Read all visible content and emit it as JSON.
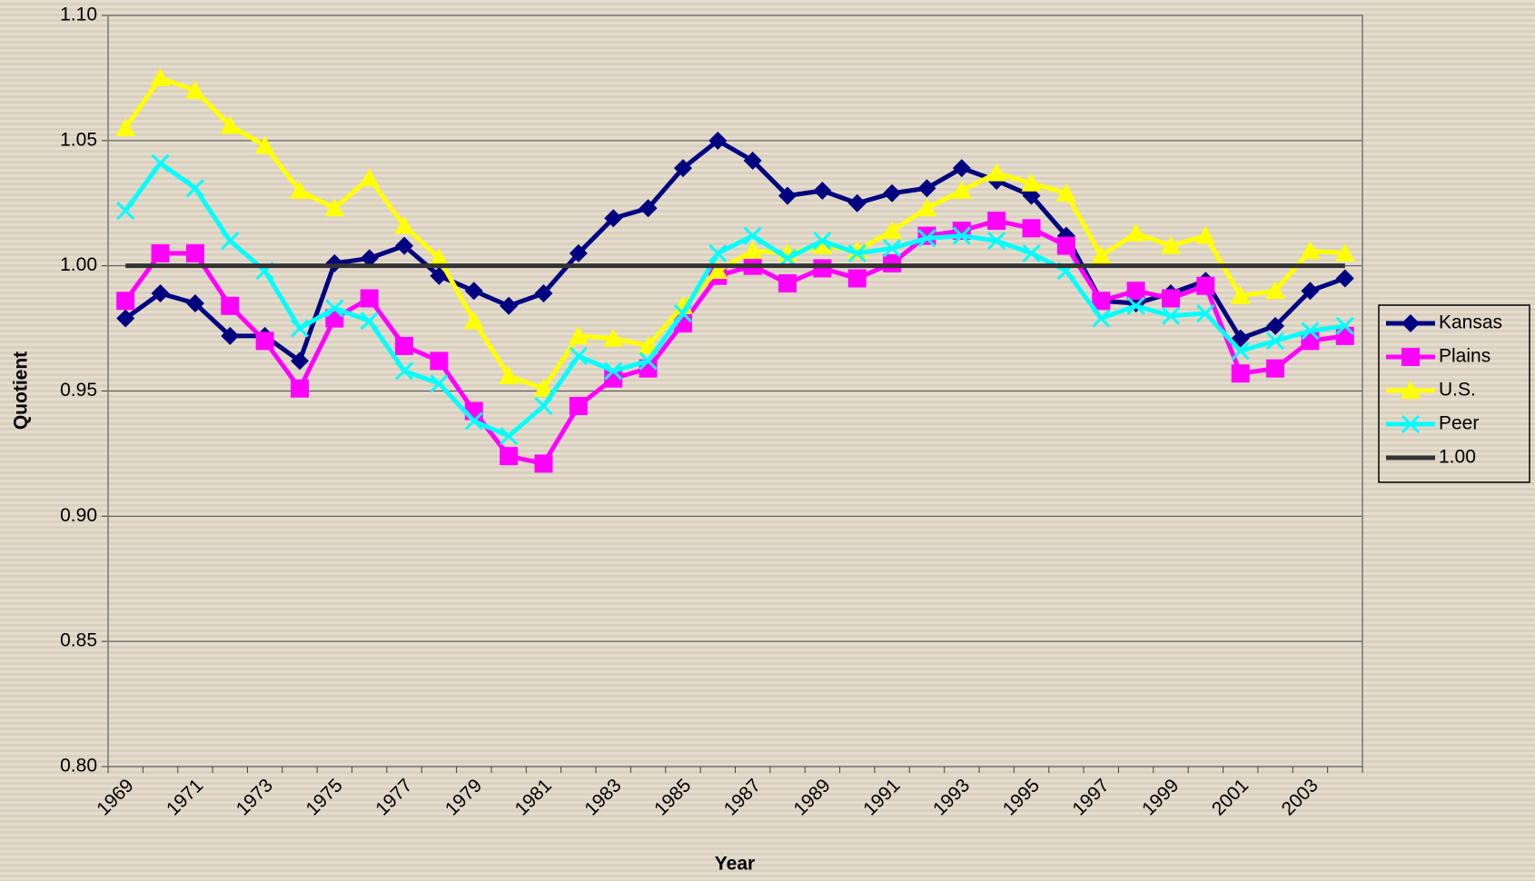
{
  "chart_data": {
    "type": "line",
    "x_label": "Year",
    "y_label": "Quotient",
    "categories": [
      "1969",
      null,
      "1971",
      null,
      "1973",
      null,
      "1975",
      null,
      "1977",
      null,
      "1979",
      null,
      "1981",
      null,
      "1983",
      null,
      "1985",
      null,
      "1987",
      null,
      "1989",
      null,
      "1991",
      null,
      "1993",
      null,
      "1995",
      null,
      "1997",
      null,
      "1999",
      null,
      "2001",
      null,
      "2003",
      null
    ],
    "ylim": [
      0.8,
      1.1
    ],
    "yticks": [
      {
        "value": 0.8,
        "label": "0.80"
      },
      0.85,
      {
        "value": 0.9,
        "label": "0.90"
      },
      0.95,
      {
        "value": 1.0,
        "label": "1.00"
      },
      1.05,
      {
        "value": 1.1,
        "label": "1.10"
      }
    ],
    "grid": true,
    "legend": "right",
    "series": [
      {
        "name": "Kansas",
        "color": "#000080",
        "marker": "diamond",
        "values": [
          0.979,
          0.989,
          0.985,
          0.972,
          0.972,
          0.962,
          1.001,
          1.003,
          1.008,
          0.996,
          0.99,
          0.984,
          0.989,
          1.005,
          1.019,
          1.023,
          1.039,
          1.05,
          1.042,
          1.028,
          1.03,
          1.025,
          1.029,
          1.031,
          1.039,
          1.034,
          1.028,
          1.012,
          0.986,
          0.985,
          0.989,
          0.994,
          0.971,
          0.976,
          0.99,
          0.995
        ]
      },
      {
        "name": "Plains",
        "color": "#ff00ff",
        "marker": "square",
        "values": [
          0.986,
          1.005,
          1.005,
          0.984,
          0.97,
          0.951,
          0.979,
          0.987,
          0.968,
          0.962,
          0.942,
          0.924,
          0.921,
          0.944,
          0.955,
          0.959,
          0.977,
          0.996,
          1.0,
          0.993,
          0.999,
          0.995,
          1.001,
          1.012,
          1.014,
          1.018,
          1.015,
          1.008,
          0.986,
          0.99,
          0.987,
          0.992,
          0.957,
          0.959,
          0.97,
          0.972
        ]
      },
      {
        "name": "U.S.",
        "color": "#ffff00",
        "marker": "triangle",
        "values": [
          1.055,
          1.075,
          1.07,
          1.056,
          1.048,
          1.03,
          1.023,
          1.035,
          1.016,
          1.003,
          0.978,
          0.956,
          0.951,
          0.972,
          0.971,
          0.968,
          0.984,
          0.998,
          1.006,
          1.005,
          1.008,
          1.006,
          1.014,
          1.023,
          1.03,
          1.037,
          1.033,
          1.029,
          1.004,
          1.013,
          1.008,
          1.012,
          0.988,
          0.99,
          1.006,
          1.005
        ]
      },
      {
        "name": "Peer",
        "color": "#00ffff",
        "marker": "x",
        "values": [
          1.022,
          1.041,
          1.031,
          1.01,
          0.998,
          0.975,
          0.983,
          0.978,
          0.958,
          0.953,
          0.938,
          0.932,
          0.944,
          0.964,
          0.958,
          0.962,
          0.981,
          1.005,
          1.012,
          1.003,
          1.01,
          1.005,
          1.007,
          1.011,
          1.012,
          1.01,
          1.005,
          0.998,
          0.979,
          0.984,
          0.98,
          0.981,
          0.966,
          0.97,
          0.974,
          0.976
        ]
      },
      {
        "name": "1.00",
        "color": "#333333",
        "marker": "none",
        "values": [
          1,
          1,
          1,
          1,
          1,
          1,
          1,
          1,
          1,
          1,
          1,
          1,
          1,
          1,
          1,
          1,
          1,
          1,
          1,
          1,
          1,
          1,
          1,
          1,
          1,
          1,
          1,
          1,
          1,
          1,
          1,
          1,
          1,
          1,
          1,
          1
        ]
      }
    ]
  }
}
